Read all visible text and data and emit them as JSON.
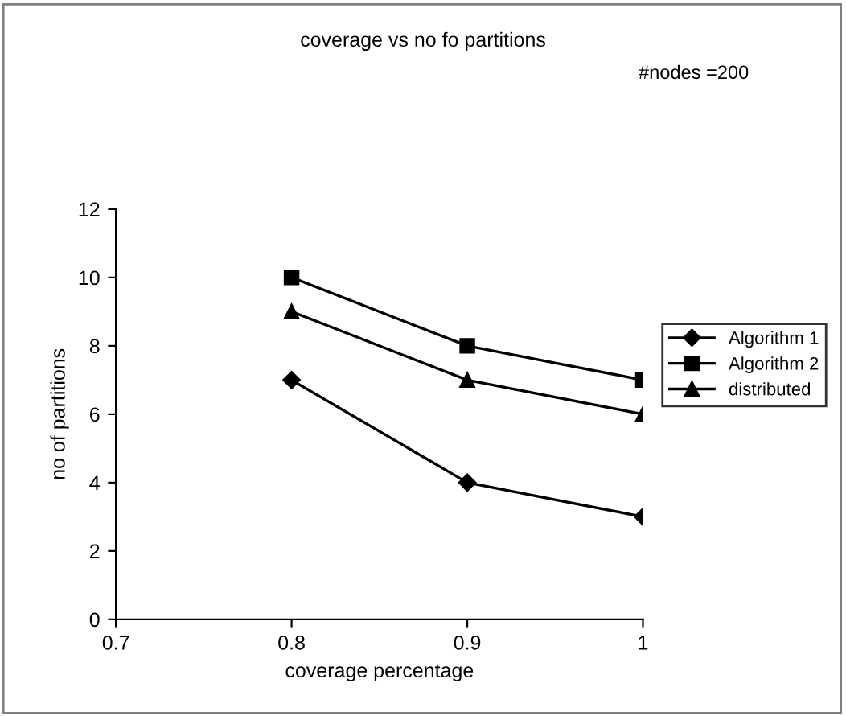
{
  "chart_data": {
    "type": "line",
    "title": "coverage vs no fo partitions",
    "xlabel": "coverage percentage",
    "ylabel": "no of partitions",
    "annotations": [
      "#nodes =200"
    ],
    "x": [
      0.8,
      0.9,
      1
    ],
    "series": [
      {
        "name": "Algorithm 1",
        "color": "#000000",
        "marker": "diamond",
        "values": [
          7,
          4,
          3
        ]
      },
      {
        "name": "Algorithm 2",
        "color": "#000000",
        "marker": "square",
        "values": [
          10,
          8,
          7
        ]
      },
      {
        "name": "distributed",
        "color": "#000000",
        "marker": "triangle",
        "values": [
          9,
          7,
          6
        ]
      }
    ],
    "xlim": [
      0.7,
      1
    ],
    "xticks": [
      0.7,
      0.8,
      0.9,
      1
    ],
    "ylim": [
      0,
      12
    ],
    "yticks": [
      0,
      2,
      4,
      6,
      8,
      10,
      12
    ],
    "grid": false,
    "legend": "right",
    "line_style": "solid"
  }
}
